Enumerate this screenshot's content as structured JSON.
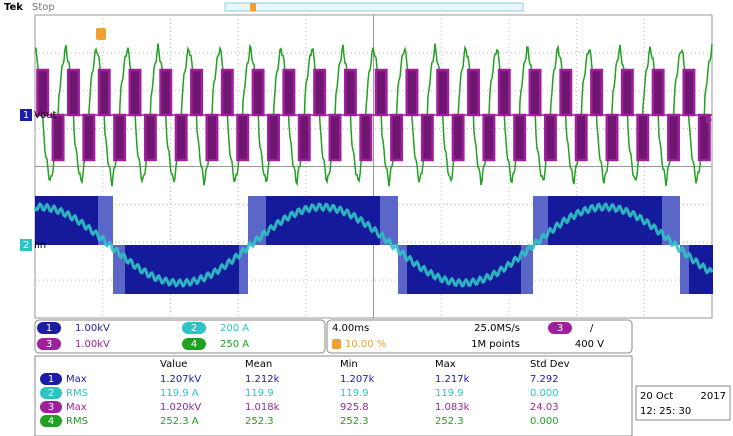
{
  "header": {
    "brand": "Tek",
    "status": "Stop"
  },
  "waveform_labels": [
    {
      "number": "1",
      "name": "Vout"
    },
    {
      "number": "2",
      "name": "Iin"
    }
  ],
  "channels": [
    {
      "number": "1",
      "scale": "1.00kV"
    },
    {
      "number": "2",
      "scale": "200 A"
    },
    {
      "number": "3",
      "scale": "1.00kV"
    },
    {
      "number": "4",
      "scale": "250 A"
    }
  ],
  "timebase": {
    "scale": "4.00ms",
    "sample_rate": "25.0MS/s",
    "trigger_position": "10.00 %",
    "record_length": "1M points",
    "trigger_source": "3",
    "trigger_slope": "/",
    "trigger_level": "400 V"
  },
  "measurements": {
    "columns": [
      "Value",
      "Mean",
      "Min",
      "Max",
      "Std Dev"
    ],
    "rows": [
      {
        "channel": "1",
        "type": "Max",
        "cells": [
          "1.207kV",
          "1.212k",
          "1.207k",
          "1.217k",
          "7.292"
        ]
      },
      {
        "channel": "2",
        "type": "RMS",
        "cells": [
          "119.9 A",
          "119.9",
          "119.9",
          "119.9",
          "0.000"
        ]
      },
      {
        "channel": "3",
        "type": "Max",
        "cells": [
          "1.020kV",
          "1.018k",
          "925.8",
          "1.083k",
          "24.03"
        ]
      },
      {
        "channel": "4",
        "type": "RMS",
        "cells": [
          "252.3 A",
          "252.3",
          "252.3",
          "252.3",
          "0.000"
        ]
      }
    ]
  },
  "datetime": {
    "date": "20 Oct",
    "year": "2017",
    "time": "12: 25: 30"
  }
}
